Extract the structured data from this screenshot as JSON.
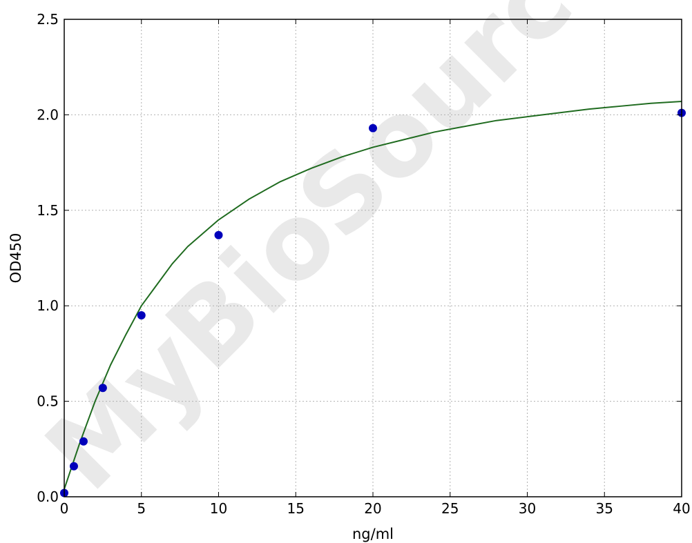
{
  "chart_data": {
    "type": "scatter",
    "xlabel": "ng/ml",
    "ylabel": "OD450",
    "xlim": [
      0,
      40
    ],
    "ylim": [
      0,
      2.5
    ],
    "xticks": [
      "0",
      "5",
      "10",
      "15",
      "20",
      "25",
      "30",
      "35",
      "40"
    ],
    "yticks": [
      "0.0",
      "0.5",
      "1.0",
      "1.5",
      "2.0",
      "2.5"
    ],
    "grid": true,
    "points": [
      {
        "x": 0,
        "y": 0.02
      },
      {
        "x": 0.625,
        "y": 0.16
      },
      {
        "x": 1.25,
        "y": 0.29
      },
      {
        "x": 2.5,
        "y": 0.57
      },
      {
        "x": 5,
        "y": 0.95
      },
      {
        "x": 10,
        "y": 1.37
      },
      {
        "x": 20,
        "y": 1.93
      },
      {
        "x": 40,
        "y": 2.01
      }
    ],
    "fit_curve": {
      "x": [
        0,
        1,
        2,
        3,
        4,
        5,
        6,
        7,
        8,
        9,
        10,
        12,
        14,
        16,
        18,
        20,
        22,
        24,
        26,
        28,
        30,
        32,
        34,
        36,
        38,
        40
      ],
      "y": [
        0.04,
        0.28,
        0.5,
        0.69,
        0.85,
        1.0,
        1.11,
        1.22,
        1.31,
        1.38,
        1.45,
        1.56,
        1.65,
        1.72,
        1.78,
        1.83,
        1.87,
        1.91,
        1.94,
        1.97,
        1.99,
        2.01,
        2.03,
        2.045,
        2.06,
        2.07
      ]
    },
    "colors": {
      "points": "#0000bb",
      "curve": "#1f6b1f",
      "grid": "#b0b0b0"
    }
  },
  "watermark": "MyBioSource"
}
